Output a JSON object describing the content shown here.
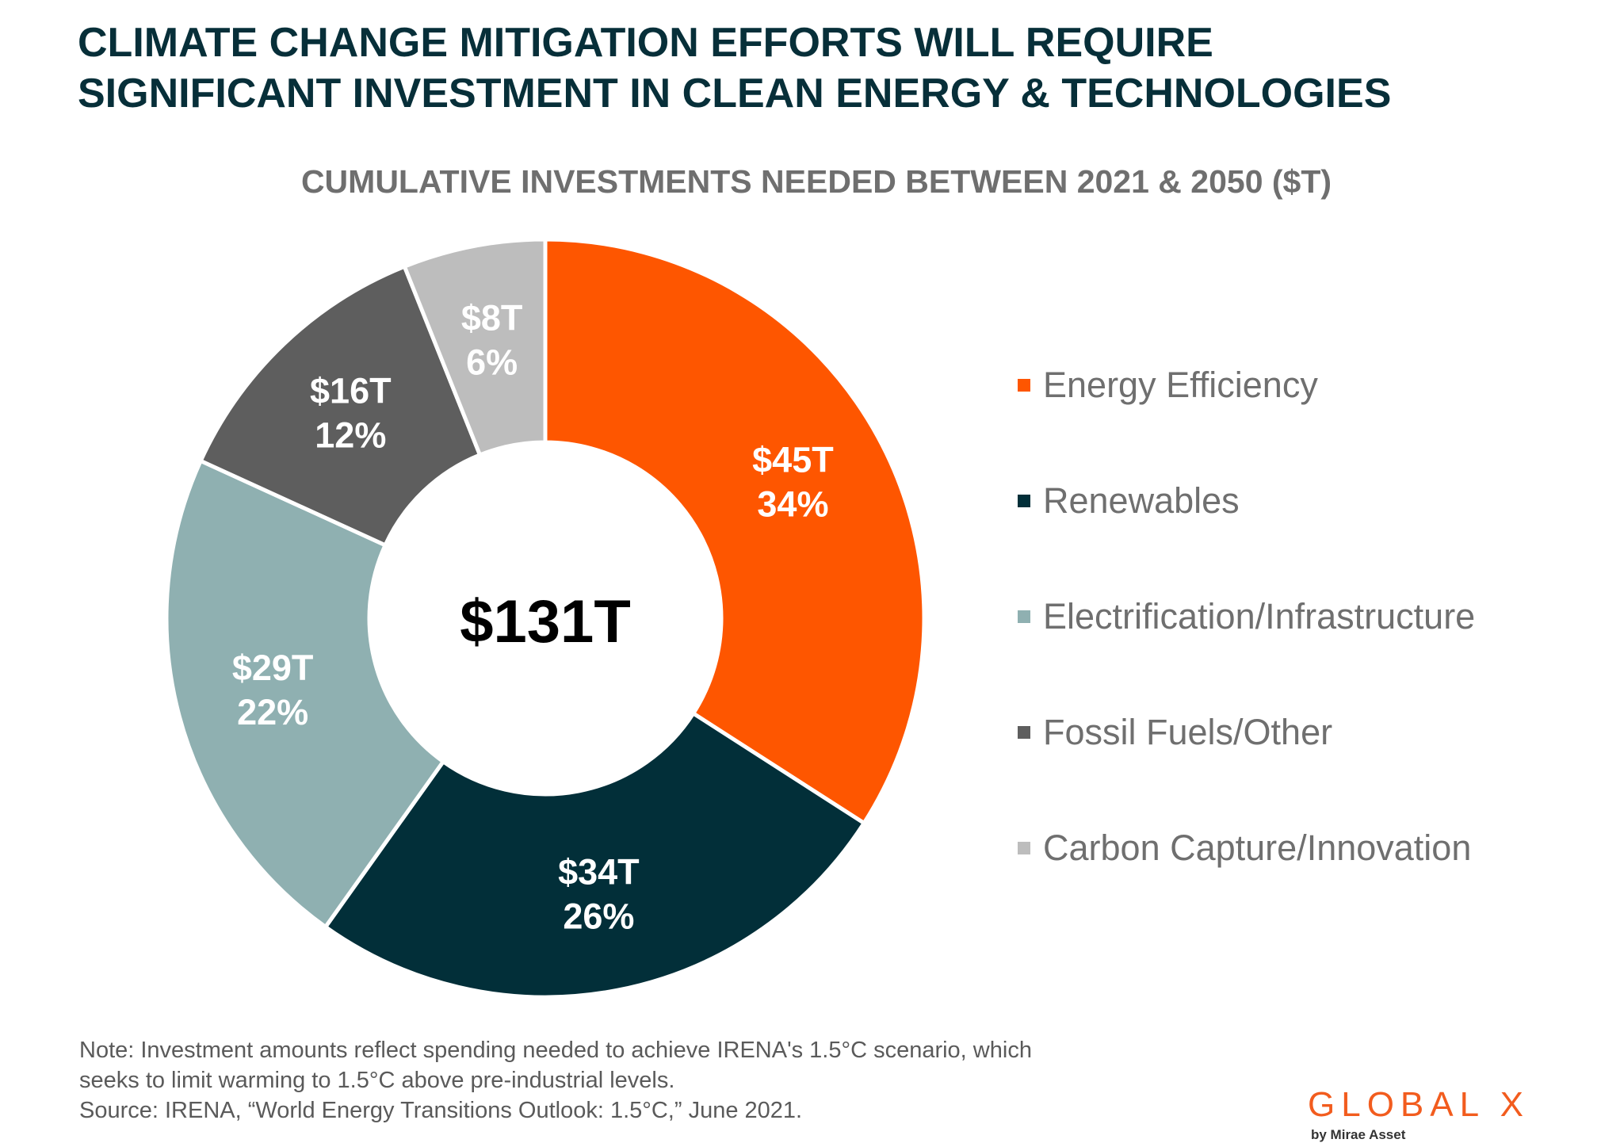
{
  "header": {
    "title_line1": "CLIMATE CHANGE MITIGATION EFFORTS WILL REQUIRE",
    "title_line2": "SIGNIFICANT INVESTMENT IN CLEAN ENERGY & TECHNOLOGIES"
  },
  "chart_data": {
    "type": "pie",
    "donut": true,
    "title": "CUMULATIVE INVESTMENTS NEEDED BETWEEN 2021 & 2050 ($T)",
    "center_label": "$131T",
    "legend_position": "right",
    "slices": [
      {
        "name": "Energy Efficiency",
        "value": 45,
        "value_label": "$45T",
        "percent_label": "34%",
        "color": "#fe5600"
      },
      {
        "name": "Renewables",
        "value": 34,
        "value_label": "$34T",
        "percent_label": "26%",
        "color": "#022f39"
      },
      {
        "name": "Electrification/Infrastructure",
        "value": 29,
        "value_label": "$29T",
        "percent_label": "22%",
        "color": "#8fb0b1"
      },
      {
        "name": "Fossil Fuels/Other",
        "value": 16,
        "value_label": "$16T",
        "percent_label": "12%",
        "color": "#5e5e5e"
      },
      {
        "name": "Carbon Capture/Innovation",
        "value": 8,
        "value_label": "$8T",
        "percent_label": "6%",
        "color": "#bdbdbd"
      }
    ]
  },
  "footer": {
    "note_line1": "Note: Investment amounts reflect spending needed to achieve IRENA's 1.5°C scenario, which",
    "note_line2": "seeks to limit warming to 1.5°C above pre-industrial levels.",
    "source": "Source: IRENA, “World Energy Transitions Outlook: 1.5°C,” June 2021."
  },
  "brand": {
    "logo_text": "GLOBAL X",
    "logo_subtext": "by Mirae Asset",
    "accent_color": "#f25c1e"
  }
}
